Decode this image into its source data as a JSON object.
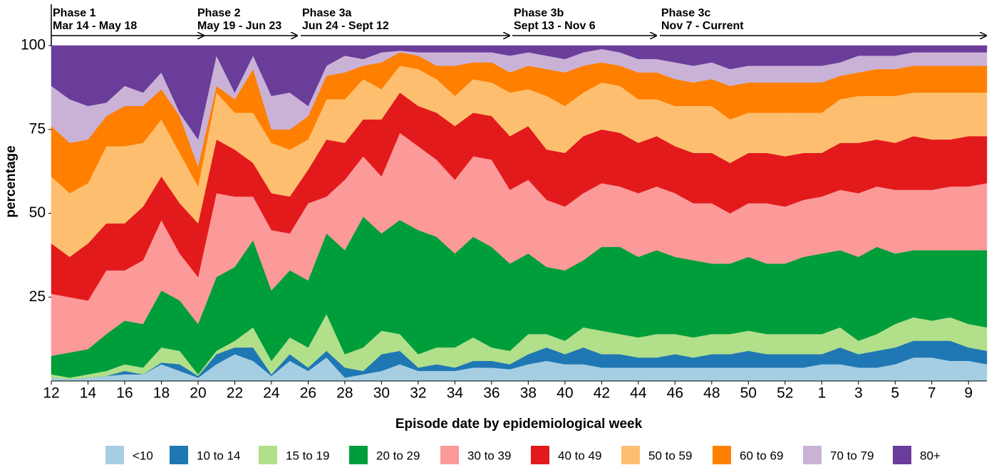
{
  "chart_data": {
    "type": "stacked-area",
    "x_label": "Episode date by epidemiological week",
    "y_label": "percentage",
    "ylim": [
      0,
      100
    ],
    "yticks": [
      25,
      50,
      75,
      100
    ],
    "grid": false,
    "legend_position": "bottom",
    "phases": [
      {
        "name": "Phase 1",
        "dates": "Mar 14 - May 18"
      },
      {
        "name": "Phase 2",
        "dates": "May 19 - Jun 23"
      },
      {
        "name": "Phase 3a",
        "dates": "Jun 24 - Sept 12"
      },
      {
        "name": "Phase 3b",
        "dates": "Sept 13 - Nov 6"
      },
      {
        "name": "Phase 3c",
        "dates": "Nov 7 - Current"
      }
    ],
    "categories": [
      "12",
      null,
      "14",
      null,
      "16",
      null,
      "18",
      null,
      "20",
      null,
      "22",
      null,
      "24",
      null,
      "26",
      null,
      "28",
      null,
      "30",
      null,
      "32",
      null,
      "34",
      null,
      "36",
      null,
      "38",
      null,
      "40",
      null,
      "42",
      null,
      "44",
      null,
      "46",
      null,
      "48",
      null,
      "50",
      null,
      "52",
      null,
      "1",
      null,
      "3",
      null,
      "5",
      null,
      "7",
      null,
      "9",
      null
    ],
    "series": [
      {
        "name": "<10",
        "color": "#a6cee3",
        "values": [
          1,
          0.5,
          1,
          1.5,
          2,
          2,
          5,
          3,
          1,
          5,
          8,
          6,
          1.5,
          6,
          3,
          7,
          1,
          2,
          3,
          5,
          3,
          3,
          3,
          4,
          4,
          3.5,
          5,
          6,
          5,
          5,
          4,
          4,
          4,
          4,
          4,
          4,
          4,
          4,
          4,
          4,
          4,
          4,
          5,
          5,
          4,
          4,
          5,
          7,
          7,
          6,
          6,
          5
        ]
      },
      {
        "name": "10 to 14",
        "color": "#1f78b4",
        "values": [
          0,
          0,
          0,
          0,
          1,
          0,
          0.5,
          2,
          0.5,
          3,
          2,
          4,
          0.5,
          2,
          1,
          2,
          3,
          1,
          5,
          4,
          1,
          2,
          1,
          2,
          2,
          1.5,
          3,
          4,
          3,
          5,
          4,
          4,
          3,
          3,
          4,
          3,
          4,
          4,
          5,
          4,
          4,
          4,
          3,
          5,
          4,
          5,
          5,
          5,
          5,
          6,
          4,
          4
        ]
      },
      {
        "name": "15 to 19",
        "color": "#b2df8a",
        "values": [
          1,
          0.5,
          1,
          1.5,
          2,
          2,
          4.5,
          4,
          0.5,
          1,
          2,
          6,
          4,
          5,
          6,
          11,
          4,
          7,
          7,
          5,
          4,
          5,
          6,
          7,
          4,
          4,
          6,
          4,
          4,
          6,
          7,
          6,
          6,
          7,
          6,
          6,
          6,
          6,
          6,
          6,
          6,
          6,
          6,
          6,
          4,
          5,
          7,
          7,
          6,
          7,
          7,
          7
        ]
      },
      {
        "name": "20 to 29",
        "color": "#009e3b",
        "values": [
          5.5,
          7.5,
          7.5,
          11,
          13,
          13,
          17,
          15,
          15,
          22,
          22,
          26,
          21,
          20,
          20,
          24,
          31,
          39,
          29,
          34,
          37,
          33,
          28,
          30,
          30,
          26,
          24,
          20,
          21,
          20,
          25,
          26,
          24,
          25,
          23,
          23,
          21,
          21,
          22,
          21,
          21,
          23,
          24,
          23,
          25,
          26,
          21,
          20,
          21,
          20,
          22,
          23
        ]
      },
      {
        "name": "30 to 39",
        "color": "#fb9a99",
        "values": [
          18.5,
          16.5,
          14.5,
          19,
          15,
          19,
          21,
          14,
          14,
          25,
          21,
          13,
          18,
          11,
          23,
          11,
          21,
          18,
          17,
          26,
          25,
          23,
          22,
          24,
          26,
          22,
          22,
          20,
          19,
          20,
          19,
          18,
          19,
          19,
          19,
          17,
          18,
          15,
          16,
          18,
          17,
          17,
          17,
          18,
          19,
          18,
          19,
          18,
          18,
          19,
          19,
          20
        ]
      },
      {
        "name": "40 to 49",
        "color": "#e31a1c",
        "values": [
          15,
          12,
          17,
          14,
          14,
          16,
          13,
          15,
          16,
          16,
          14,
          10,
          11,
          11,
          10,
          17,
          11,
          11,
          17,
          12,
          12,
          14,
          16,
          13,
          13,
          16,
          16,
          15,
          16,
          17,
          16,
          16,
          15,
          15,
          14,
          15,
          15,
          15,
          15,
          15,
          15,
          14,
          13,
          14,
          15,
          14,
          14,
          16,
          15,
          14,
          15,
          14
        ]
      },
      {
        "name": "50 to 59",
        "color": "#fdbf6f",
        "values": [
          20,
          19,
          18,
          23,
          23,
          19,
          17,
          15,
          11,
          14,
          11,
          15,
          15,
          14,
          9,
          12,
          13,
          12,
          9,
          8,
          11,
          10,
          9,
          10,
          10,
          13,
          11,
          16,
          14,
          13,
          14,
          14,
          13,
          11,
          12,
          14,
          14,
          13,
          12,
          12,
          13,
          12,
          12,
          13,
          14,
          13,
          14,
          13,
          14,
          14,
          13,
          13
        ]
      },
      {
        "name": "60 to 69",
        "color": "#ff7f00",
        "values": [
          15,
          15,
          13,
          9,
          12,
          11,
          9,
          11,
          6,
          2,
          4,
          13,
          4,
          6,
          7,
          7,
          8,
          4,
          8,
          4,
          4,
          4,
          9,
          5,
          6,
          6,
          7,
          8,
          10,
          8,
          6,
          6,
          8,
          8,
          8,
          7,
          8,
          10,
          9,
          9,
          9,
          9,
          9,
          7,
          7,
          8,
          8,
          8,
          8,
          8,
          8,
          8
        ]
      },
      {
        "name": "70 to 79",
        "color": "#cab2d6",
        "values": [
          12,
          13,
          10,
          4,
          6,
          4,
          5,
          1,
          8,
          9,
          2,
          4,
          10,
          11,
          3,
          3,
          5,
          2,
          3,
          0.5,
          1,
          4,
          4,
          3,
          3,
          5,
          4,
          4,
          4,
          4,
          4,
          4,
          4,
          4,
          5,
          5,
          5,
          5,
          5,
          5,
          5,
          5,
          5,
          4,
          5,
          4,
          4,
          4,
          4,
          4,
          4,
          4
        ]
      },
      {
        "name": "80+",
        "color": "#6a3d9a",
        "values": [
          12,
          16,
          18,
          17,
          12,
          14,
          8,
          20,
          28,
          3,
          14,
          3,
          15,
          14,
          18,
          6,
          3,
          4,
          2,
          1.5,
          2,
          2,
          2,
          2,
          2,
          3,
          2,
          3,
          4,
          2,
          1,
          2,
          4,
          4,
          5,
          6,
          5,
          7,
          6,
          6,
          6,
          6,
          6,
          5,
          3,
          3,
          3,
          2,
          2,
          2,
          2,
          2
        ]
      }
    ]
  }
}
